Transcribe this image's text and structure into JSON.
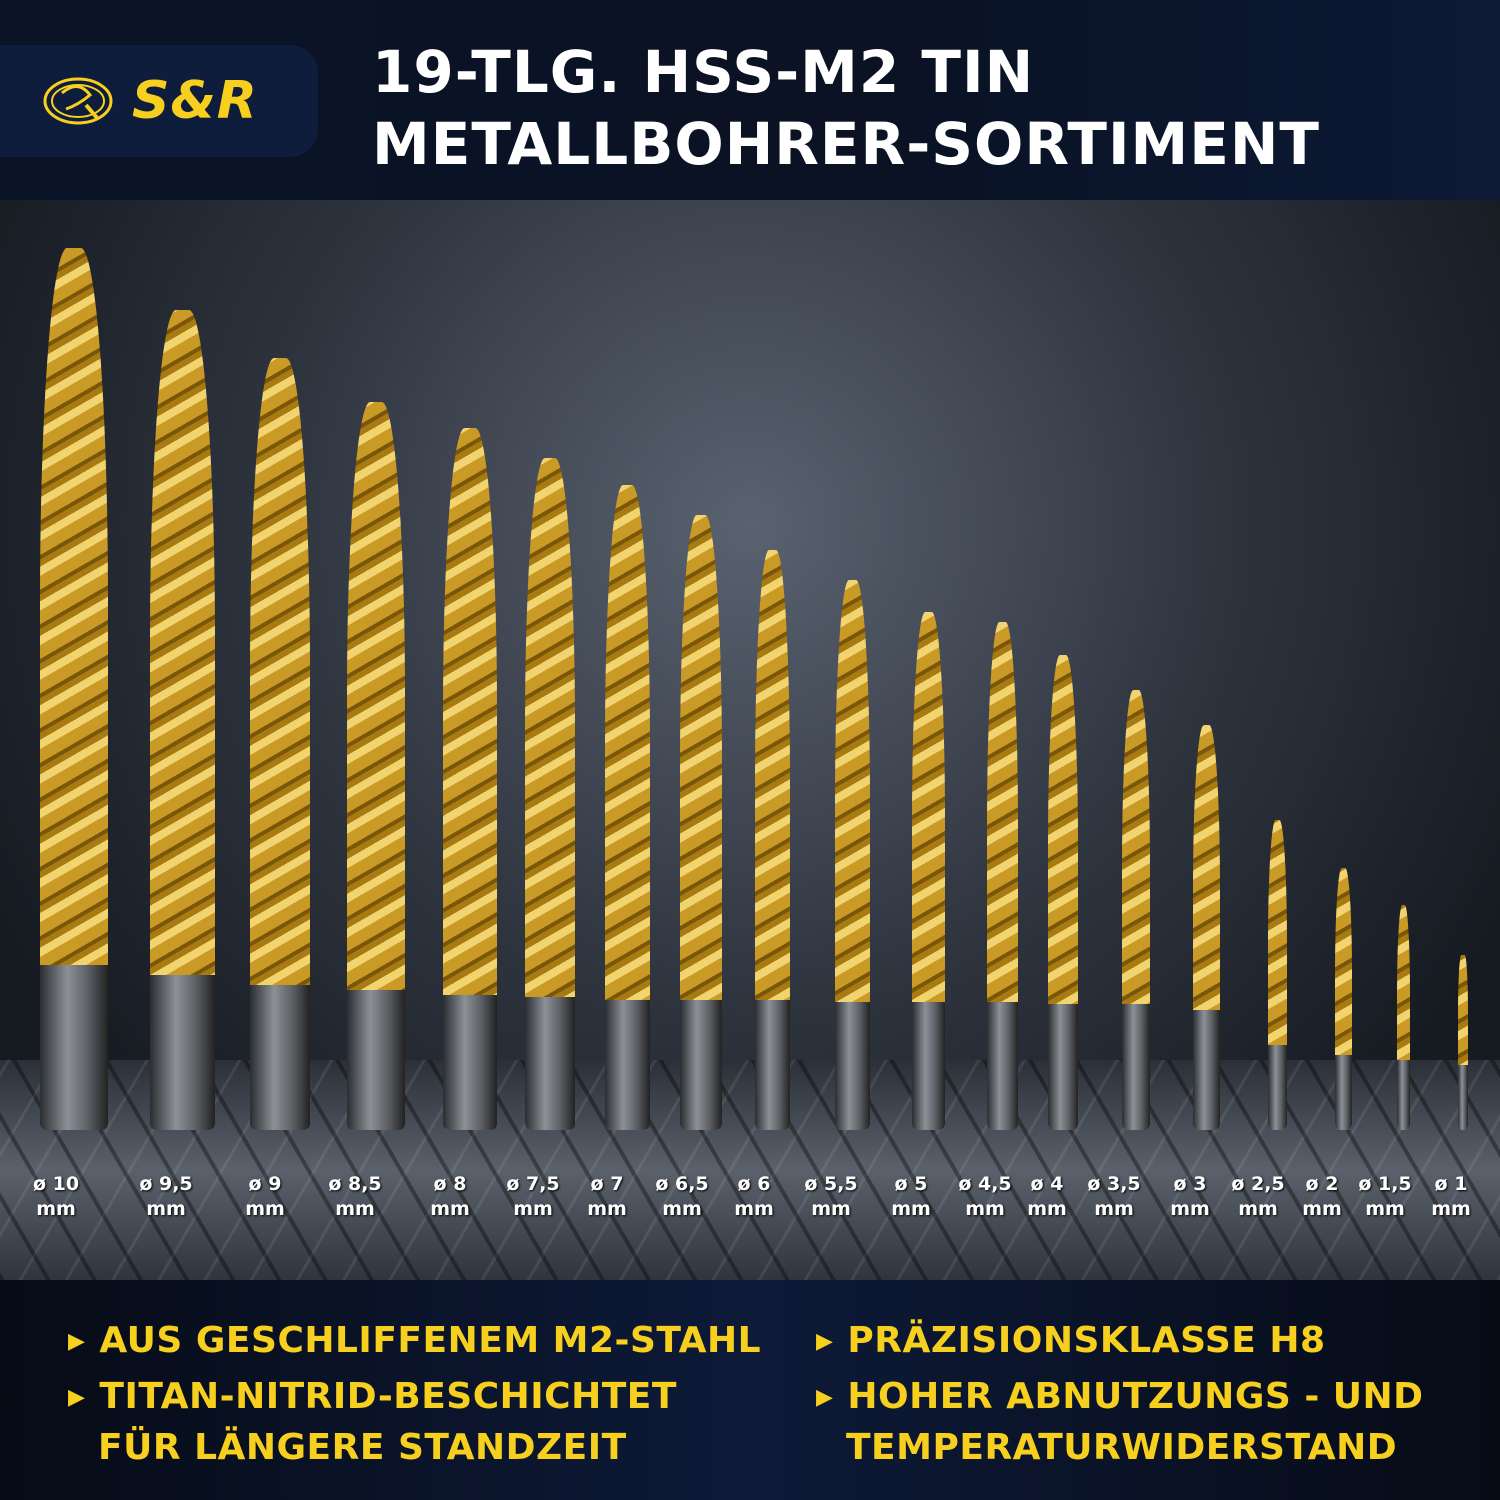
{
  "brand": {
    "name": "S&R",
    "color": "#f7cf1e"
  },
  "title": {
    "line1": "19-TLG. HSS-M2 TIN",
    "line2": "METALLBOHRER-SORTIMENT"
  },
  "sizes": [
    "ø 10",
    "ø 9,5",
    "ø 9",
    "ø 8,5",
    "ø 8",
    "ø 7,5",
    "ø 7",
    "ø 6,5",
    "ø 6",
    "ø 5,5",
    "ø 5",
    "ø 4,5",
    "ø 4",
    "ø 3,5",
    "ø 3",
    "ø 2,5",
    "ø 2",
    "ø 1,5",
    "ø 1"
  ],
  "unit": "mm",
  "features": [
    {
      "icon": "triangle-right-icon",
      "line1": "AUS GESCHLIFFENEM M2-STAHL"
    },
    {
      "icon": "triangle-right-icon",
      "line1": "TITAN-NITRID-BESCHICHTET",
      "line2": "FÜR LÄNGERE STANDZEIT"
    },
    {
      "icon": "triangle-right-icon",
      "line1": "PRÄZISIONSKLASSE H8"
    },
    {
      "icon": "triangle-right-icon",
      "line1": "HOHER ABNUTZUNGS - UND",
      "line2": "TEMPERATURWIDERSTAND"
    }
  ]
}
